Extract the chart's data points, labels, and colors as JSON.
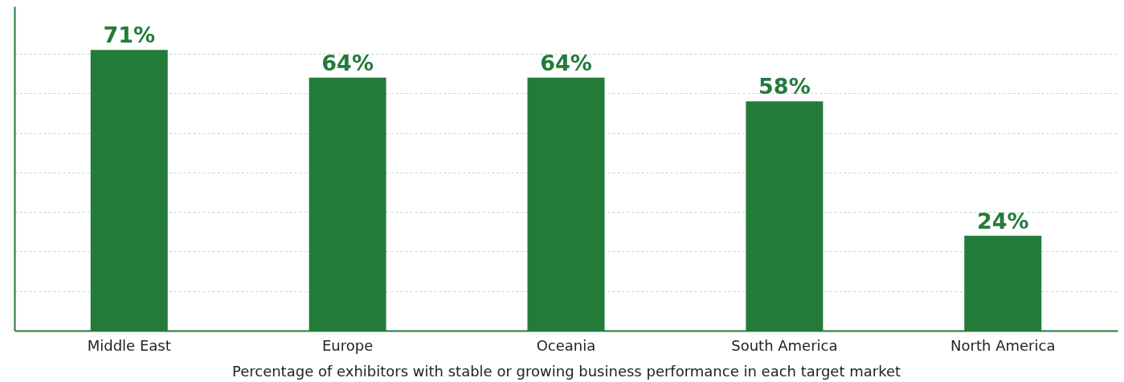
{
  "chart_data": {
    "type": "bar",
    "xlabel": "Percentage of exhibitors with stable or growing business performance in each target market",
    "categories": [
      "Middle East",
      "Europe",
      "Oceania",
      "South America",
      "North America"
    ],
    "values": [
      71,
      64,
      64,
      58,
      24
    ],
    "value_labels": [
      "71%",
      "64%",
      "64%",
      "58%",
      "24%"
    ],
    "color": "#237b3a",
    "ylim": [
      0,
      82
    ],
    "yticks": [
      {
        "value": 10,
        "label": null
      },
      {
        "value": 20,
        "label": null
      },
      {
        "value": 30,
        "label": null
      },
      {
        "value": 40,
        "label": null
      },
      {
        "value": 50,
        "label": null
      },
      {
        "value": 60,
        "label": null
      },
      {
        "value": 70,
        "label": null
      }
    ],
    "grid": "y",
    "tick_labels": "x"
  }
}
